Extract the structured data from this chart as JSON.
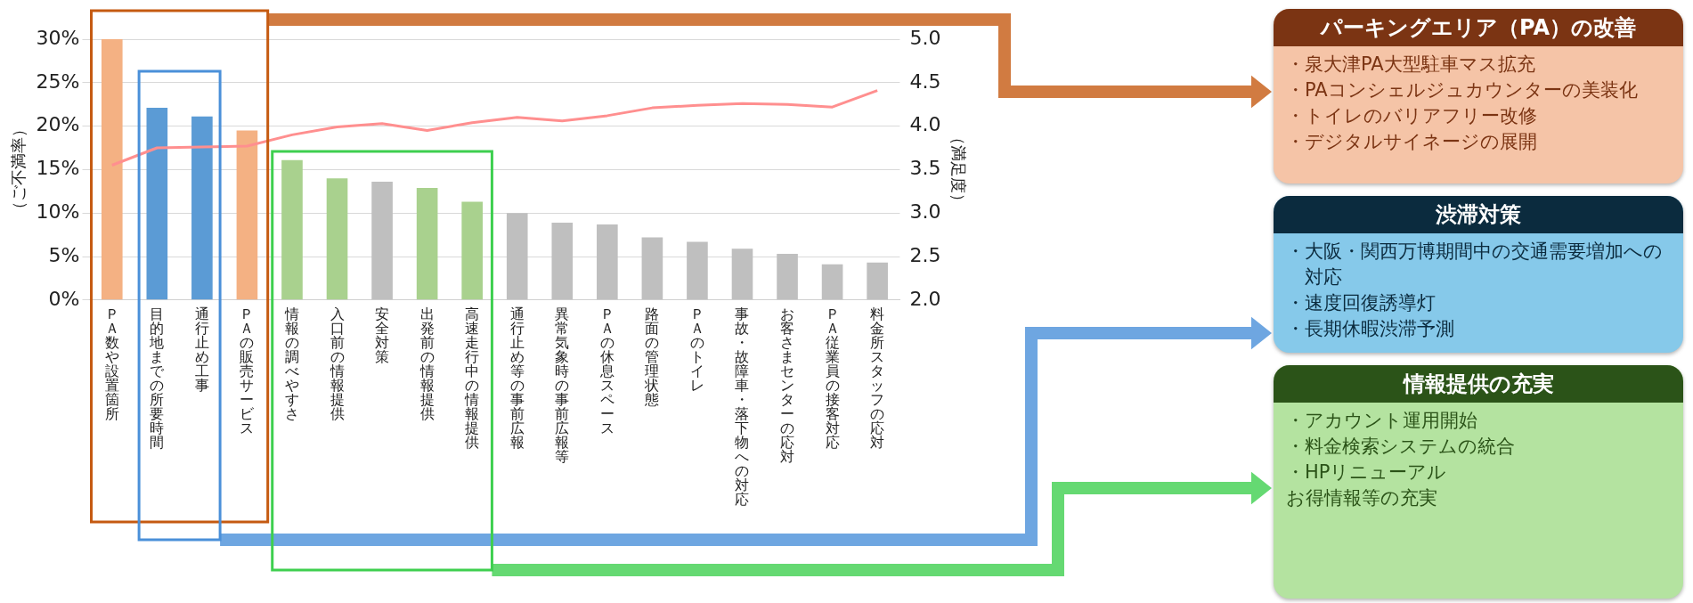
{
  "chart_data": [
    {
      "type": "bar",
      "categories": [
        "ＰＡ数や設置箇所",
        "目的地までの所要時間",
        "通行止め工事",
        "ＰＡの販売サービス",
        "情報の調べやすさ",
        "入口前の情報提供",
        "安全対策",
        "出発前の情報提供",
        "高速走行中の情報提供",
        "通行止め等の事前広報",
        "異常気象時の事前広報等",
        "ＰＡの休息スペース",
        "路面の管理状態",
        "ＰＡのトイレ",
        "事故・故障車・落下物への対応",
        "お客さまセンターの応対",
        "ＰＡ従業員の接客対応",
        "料金所スタッフの応対"
      ],
      "series": [
        {
          "type": "bar",
          "colors": [
            "#f4b183",
            "#5b9bd5",
            "#5b9bd5",
            "#f4b183",
            "#a9d18e",
            "#a9d18e",
            "#bfbfbf",
            "#a9d18e",
            "#a9d18e",
            "#bfbfbf",
            "#bfbfbf",
            "#bfbfbf",
            "#bfbfbf",
            "#bfbfbf",
            "#bfbfbf",
            "#bfbfbf",
            "#bfbfbf",
            "#bfbfbf"
          ],
          "values": [
            30,
            22.1,
            21.1,
            19.5,
            16.1,
            14,
            13.6,
            12.9,
            11.3,
            10,
            8.9,
            8.7,
            7.2,
            6.7,
            5.9,
            5.3,
            4.1,
            4.3
          ]
        },
        {
          "type": "line",
          "axis": "y2",
          "color": "#ff8f8f",
          "values": [
            3.55,
            3.75,
            3.76,
            3.77,
            3.9,
            3.99,
            4.03,
            3.95,
            4.04,
            4.1,
            4.06,
            4.12,
            4.21,
            4.24,
            4.26,
            4.25,
            4.22,
            4.41
          ]
        }
      ],
      "ylim": [
        0,
        30
      ],
      "yticks": [
        {
          "value": 0,
          "label": "0%"
        },
        {
          "value": 5,
          "label": "5%"
        },
        {
          "value": 10,
          "label": "10%"
        },
        {
          "value": 15,
          "label": "15%"
        },
        {
          "value": 20,
          "label": "20%"
        },
        {
          "value": 25,
          "label": "25%"
        },
        {
          "value": 30,
          "label": "30%"
        }
      ],
      "y2lim": [
        2,
        5
      ],
      "y2ticks": [
        {
          "value": 2,
          "label": "2.0"
        },
        {
          "value": 2.5,
          "label": "2.5"
        },
        {
          "value": 3,
          "label": "3.0"
        },
        {
          "value": 3.5,
          "label": "3.5"
        },
        {
          "value": 4,
          "label": "4.0"
        },
        {
          "value": 4.5,
          "label": "4.5"
        },
        {
          "value": 5,
          "label": "5.0"
        }
      ],
      "ylabel": "（ご不満率）",
      "y2label": "（満足度）",
      "grid": "y",
      "legend": false,
      "marker": "none"
    },
    {
      "type": "other",
      "title": "パーキングエリア（PA）の改善",
      "annotations": [
        "・泉大津PA大型駐車マス拡充",
        "・PAコンシェルジュカウンターの美装化",
        "・トイレのバリアフリー改修",
        "・デジタルサイネージの展開"
      ]
    },
    {
      "type": "other",
      "title": "渋滞対策",
      "annotations": [
        "・大阪・関西万博期間中の交通需要増加への対応",
        "・速度回復誘導灯",
        "・長期休暇渋滞予測"
      ]
    },
    {
      "type": "other",
      "title": "情報提供の充実",
      "annotations": [
        "・アカウント運用開始",
        "・料金検索システムの統合",
        "・HPリニューアル",
        "お得情報等の充実"
      ]
    }
  ]
}
